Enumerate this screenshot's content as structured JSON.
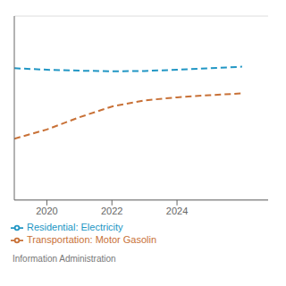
{
  "chart_data": {
    "type": "line",
    "x": [
      2019,
      2020,
      2021,
      2022,
      2023,
      2024,
      2025,
      2026
    ],
    "series": [
      {
        "name": "Residential: Electricity",
        "color": "#2196c4",
        "line_style": "dashed",
        "values": [
          13.8,
          13.75,
          13.72,
          13.7,
          13.71,
          13.75,
          13.8,
          13.85
        ]
      },
      {
        "name": "Transportation: Motor Gasolin",
        "color": "#c87137",
        "line_style": "dashed",
        "values": [
          11.5,
          11.8,
          12.2,
          12.55,
          12.75,
          12.85,
          12.92,
          12.98
        ]
      }
    ],
    "xlim": [
      2019,
      2026.8
    ],
    "xticks": [
      2020,
      2022,
      2024
    ],
    "ylim": [
      9.5,
      15.5
    ],
    "yticks": [
      10,
      11,
      12,
      13,
      14,
      15
    ],
    "grid": true,
    "tick_labels": "x",
    "legend": "bottom",
    "annotations": [
      "Information Administration"
    ]
  }
}
